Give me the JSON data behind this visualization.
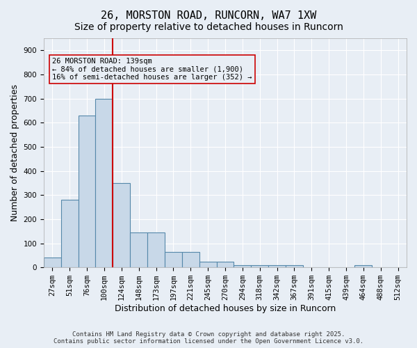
{
  "title_line1": "26, MORSTON ROAD, RUNCORN, WA7 1XW",
  "title_line2": "Size of property relative to detached houses in Runcorn",
  "xlabel": "Distribution of detached houses by size in Runcorn",
  "ylabel": "Number of detached properties",
  "bar_color": "#c8d8e8",
  "bar_edge_color": "#5588aa",
  "bar_values": [
    40,
    280,
    630,
    700,
    350,
    145,
    145,
    65,
    65,
    25,
    25,
    10,
    10,
    10,
    10,
    0,
    0,
    0,
    10,
    0,
    0
  ],
  "categories": [
    "27sqm",
    "51sqm",
    "76sqm",
    "100sqm",
    "124sqm",
    "148sqm",
    "173sqm",
    "197sqm",
    "221sqm",
    "245sqm",
    "270sqm",
    "294sqm",
    "318sqm",
    "342sqm",
    "367sqm",
    "391sqm",
    "415sqm",
    "439sqm",
    "464sqm",
    "488sqm",
    "512sqm"
  ],
  "ylim": [
    0,
    950
  ],
  "yticks": [
    0,
    100,
    200,
    300,
    400,
    500,
    600,
    700,
    800,
    900
  ],
  "vline_x": 4,
  "vline_color": "#cc0000",
  "annotation_text": "26 MORSTON ROAD: 139sqm\n← 84% of detached houses are smaller (1,900)\n16% of semi-detached houses are larger (352) →",
  "annotation_box_color": "#cc0000",
  "background_color": "#e8eef5",
  "grid_color": "#ffffff",
  "footer_text": "Contains HM Land Registry data © Crown copyright and database right 2025.\nContains public sector information licensed under the Open Government Licence v3.0.",
  "title_fontsize": 11,
  "subtitle_fontsize": 10,
  "xlabel_fontsize": 9,
  "ylabel_fontsize": 9,
  "tick_fontsize": 7.5,
  "annotation_fontsize": 7.5,
  "footer_fontsize": 6.5
}
